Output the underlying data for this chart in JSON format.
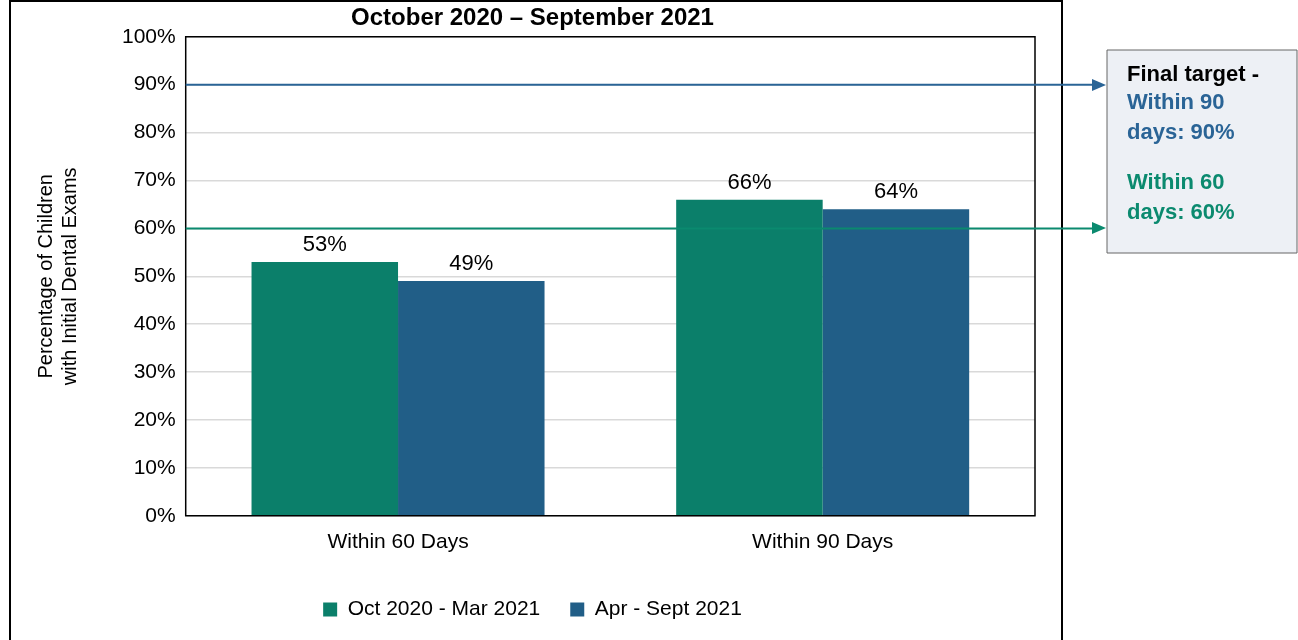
{
  "chart_data": {
    "type": "bar",
    "title": "October 2020 – September 2021",
    "ylabel": "Percentage of Children with Initial Dental Exams",
    "categories": [
      "Within 60 Days",
      "Within 90 Days"
    ],
    "series": [
      {
        "name": "Oct 2020 - Mar 2021",
        "color": "#0b7f6a",
        "values": [
          53,
          66
        ]
      },
      {
        "name": "Apr - Sept 2021",
        "color": "#215e87",
        "values": [
          49,
          64
        ]
      }
    ],
    "ylim": [
      0,
      100
    ],
    "yticks": [
      {
        "value": 0,
        "label": "0%"
      },
      {
        "value": 10,
        "label": "10%"
      },
      {
        "value": 20,
        "label": "20%"
      },
      {
        "value": 30,
        "label": "30%"
      },
      {
        "value": 40,
        "label": "40%"
      },
      {
        "value": 50,
        "label": "50%"
      },
      {
        "value": 60,
        "label": "60%"
      },
      {
        "value": 70,
        "label": "70%"
      },
      {
        "value": 80,
        "label": "80%"
      },
      {
        "value": 90,
        "label": "90%"
      },
      {
        "value": 100,
        "label": "100%"
      }
    ],
    "value_labels": [
      [
        "53%",
        "66%"
      ],
      [
        "49%",
        "64%"
      ]
    ],
    "ref_lines": [
      {
        "axis": "y",
        "value": 90,
        "label": "Within 90 days: 90%",
        "color": "#2a6496"
      },
      {
        "axis": "y",
        "value": 60,
        "label": "Within 60 days: 60%",
        "color": "#0b8a6f"
      }
    ],
    "annotations": [
      "Final target -"
    ],
    "grid": "y",
    "legend": "bottom"
  }
}
